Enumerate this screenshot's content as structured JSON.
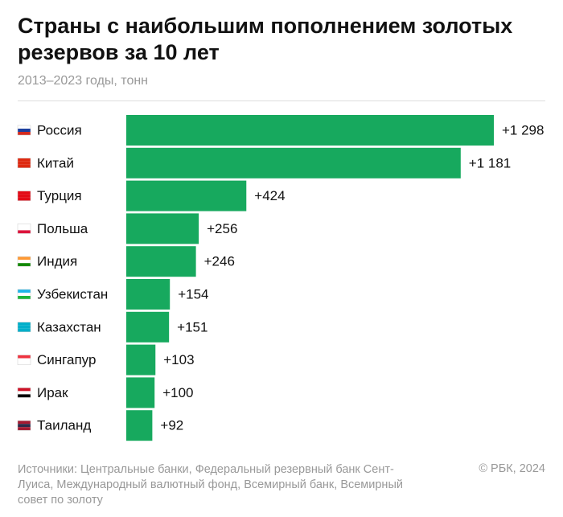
{
  "chart_data": {
    "type": "bar",
    "orientation": "horizontal",
    "title_lines": [
      "Страны с наибольшим пополнением золотых",
      "резервов за 10 лет"
    ],
    "subtitle": "2013–2023 годы, тонн",
    "categories": [
      "Россия",
      "Китай",
      "Турция",
      "Польша",
      "Индия",
      "Узбекистан",
      "Казахстан",
      "Сингапур",
      "Ирак",
      "Таиланд"
    ],
    "values": [
      1298,
      1181,
      424,
      256,
      246,
      154,
      151,
      103,
      100,
      92
    ],
    "value_labels": [
      "+1 298",
      "+1 181",
      "+424",
      "+256",
      "+246",
      "+154",
      "+151",
      "+103",
      "+100",
      "+92"
    ],
    "color": "#17a95e",
    "source": "Источники: Центральные банки, Федеральный резервный банк Сент-Луиса, Международный валютный фонд, Всемирный банк, Всемирный совет по золоту",
    "credit": "© РБК, 2024"
  }
}
